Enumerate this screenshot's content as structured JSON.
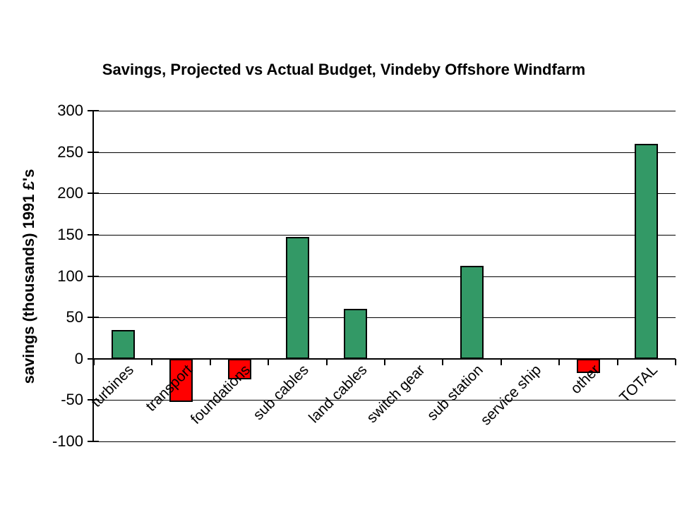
{
  "title": "Savings, Projected vs Actual Budget, Vindeby Offshore Windfarm",
  "chart_data": {
    "type": "bar",
    "title": "Savings, Projected vs Actual Budget, Vindeby Offshore Windfarm",
    "xlabel": "",
    "ylabel": "savings (thousands) 1991 £'s",
    "categories": [
      "turbines",
      "transport",
      "foundations",
      "sub cables",
      "land cables",
      "switch gear",
      "sub station",
      "service ship",
      "other",
      "TOTAL"
    ],
    "values": [
      35,
      -52,
      -25,
      147,
      60,
      0,
      112,
      0,
      -17,
      260
    ],
    "ylim": [
      -100,
      300
    ],
    "ytick_step": 50,
    "ytick_labels": [
      "300",
      "250",
      "200",
      "150",
      "100",
      "50",
      "0",
      "-50",
      "-100"
    ],
    "grid": true,
    "legend": false,
    "positive_color": "#339966",
    "negative_color": "#ff0000",
    "bar_border_color": "#000000",
    "axis_color": "#000000",
    "background_color": "#ffffff"
  }
}
